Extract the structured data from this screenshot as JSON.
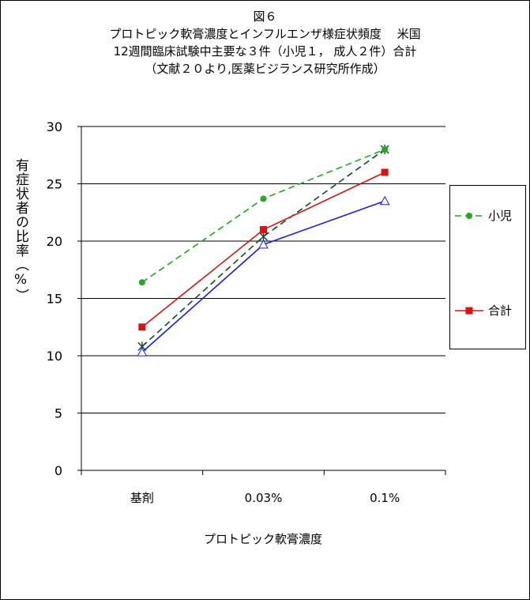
{
  "title_lines": [
    "図６",
    "プロトピック軟膏濃度とインフルエンザ様症状頻度　 米国",
    "12週間臨床試験中主要な３件（小児１， 成人２件）合計",
    "（文献２０より,医薬ビジランス研究所作成）"
  ],
  "chart_data": {
    "type": "line",
    "categories": [
      "基剤",
      "0.03%",
      "0.1%"
    ],
    "ylabel": "有症状者の比率（%）",
    "xlabel": "プロトピック軟膏濃度",
    "ylim": [
      0,
      30
    ],
    "yticks": [
      "0",
      "5",
      "10",
      "15",
      "20",
      "25",
      "30"
    ],
    "grid": true,
    "legend_position": "right",
    "series": [
      {
        "name": "小児",
        "values": [
          16.4,
          23.7,
          28.0
        ],
        "color": "#22aa22",
        "marker": "circle",
        "dash": true,
        "in_legend": true
      },
      {
        "name": "合計",
        "values": [
          12.5,
          21.0,
          26.0
        ],
        "color": "#dd1111",
        "marker": "square",
        "dash": false,
        "in_legend": true
      },
      {
        "name": "",
        "values": [
          10.3,
          19.7,
          23.5
        ],
        "color": "#1a1aee",
        "marker": "triangle-open",
        "dash": false,
        "in_legend": false
      },
      {
        "name": "",
        "values": [
          10.8,
          20.4,
          28.0
        ],
        "color": "#0f4a2a",
        "marker": "star",
        "dash": true,
        "in_legend": false
      }
    ]
  }
}
